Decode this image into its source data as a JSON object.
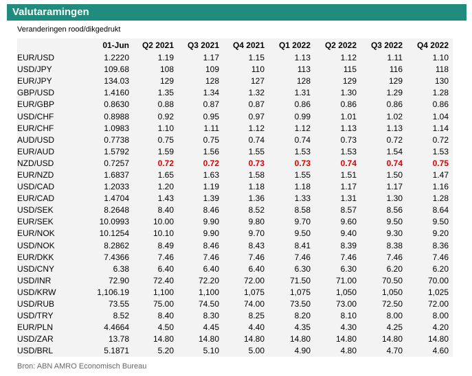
{
  "title": "Valutaramingen",
  "subtitle": "Veranderingen rood/dikgedrukt",
  "columns": [
    "",
    "01-Jun",
    "Q2 2021",
    "Q3 2021",
    "Q4 2021",
    "Q1 2022",
    "Q2 2022",
    "Q3 2022",
    "Q4 2022"
  ],
  "rows": [
    {
      "pair": "EUR/USD",
      "values": [
        "1.2220",
        "1.19",
        "1.17",
        "1.15",
        "1.13",
        "1.12",
        "1.11",
        "1.10"
      ],
      "highlight": false
    },
    {
      "pair": "USD/JPY",
      "values": [
        "109.68",
        "108",
        "109",
        "110",
        "113",
        "115",
        "116",
        "118"
      ],
      "highlight": false
    },
    {
      "pair": "EUR/JPY",
      "values": [
        "134.03",
        "129",
        "128",
        "127",
        "128",
        "129",
        "129",
        "130"
      ],
      "highlight": false
    },
    {
      "pair": "GBP/USD",
      "values": [
        "1.4160",
        "1.35",
        "1.34",
        "1.32",
        "1.31",
        "1.30",
        "1.29",
        "1.28"
      ],
      "highlight": false
    },
    {
      "pair": "EUR/GBP",
      "values": [
        "0.8630",
        "0.88",
        "0.87",
        "0.87",
        "0.86",
        "0.86",
        "0.86",
        "0.86"
      ],
      "highlight": false
    },
    {
      "pair": "USD/CHF",
      "values": [
        "0.8988",
        "0.92",
        "0.95",
        "0.97",
        "0.99",
        "1.01",
        "1.02",
        "1.04"
      ],
      "highlight": false
    },
    {
      "pair": "EUR/CHF",
      "values": [
        "1.0983",
        "1.10",
        "1.11",
        "1.12",
        "1.12",
        "1.13",
        "1.13",
        "1.14"
      ],
      "highlight": false
    },
    {
      "pair": "AUD/USD",
      "values": [
        "0.7738",
        "0.75",
        "0.75",
        "0.74",
        "0.74",
        "0.73",
        "0.72",
        "0.72"
      ],
      "highlight": false
    },
    {
      "pair": "EUR/AUD",
      "values": [
        "1.5792",
        "1.59",
        "1.56",
        "1.55",
        "1.53",
        "1.53",
        "1.54",
        "1.53"
      ],
      "highlight": false
    },
    {
      "pair": "NZD/USD",
      "values": [
        "0.7257",
        "0.72",
        "0.72",
        "0.73",
        "0.73",
        "0.74",
        "0.74",
        "0.75"
      ],
      "highlight": true
    },
    {
      "pair": "EUR/NZD",
      "values": [
        "1.6837",
        "1.65",
        "1.63",
        "1.58",
        "1.55",
        "1.51",
        "1.50",
        "1.47"
      ],
      "highlight": false
    },
    {
      "pair": "USD/CAD",
      "values": [
        "1.2033",
        "1.20",
        "1.19",
        "1.18",
        "1.18",
        "1.17",
        "1.17",
        "1.16"
      ],
      "highlight": false
    },
    {
      "pair": "EUR/CAD",
      "values": [
        "1.4704",
        "1.43",
        "1.39",
        "1.36",
        "1.33",
        "1.31",
        "1.30",
        "1.28"
      ],
      "highlight": false
    },
    {
      "pair": "USD/SEK",
      "values": [
        "8.2648",
        "8.40",
        "8.46",
        "8.52",
        "8.58",
        "8.57",
        "8.56",
        "8.64"
      ],
      "highlight": false
    },
    {
      "pair": "EUR/SEK",
      "values": [
        "10.0993",
        "10.00",
        "9.90",
        "9.80",
        "9.70",
        "9.60",
        "9.50",
        "9.50"
      ],
      "highlight": false
    },
    {
      "pair": "EUR/NOK",
      "values": [
        "10.1254",
        "10.10",
        "9.90",
        "9.70",
        "9.50",
        "9.40",
        "9.30",
        "9.20"
      ],
      "highlight": false
    },
    {
      "pair": "USD/NOK",
      "values": [
        "8.2862",
        "8.49",
        "8.46",
        "8.43",
        "8.41",
        "8.39",
        "8.38",
        "8.36"
      ],
      "highlight": false
    },
    {
      "pair": "EUR/DKK",
      "values": [
        "7.4366",
        "7.46",
        "7.46",
        "7.46",
        "7.46",
        "7.46",
        "7.46",
        "7.46"
      ],
      "highlight": false
    },
    {
      "pair": "USD/CNY",
      "values": [
        "6.38",
        "6.40",
        "6.40",
        "6.40",
        "6.30",
        "6.30",
        "6.20",
        "6.20"
      ],
      "highlight": false
    },
    {
      "pair": "USD/INR",
      "values": [
        "72.90",
        "72.40",
        "72.20",
        "72.00",
        "71.50",
        "71.00",
        "70.50",
        "70.00"
      ],
      "highlight": false
    },
    {
      "pair": "USD/KRW",
      "values": [
        "1,106.19",
        "1,100",
        "1,100",
        "1,075",
        "1,075",
        "1,050",
        "1,050",
        "1,025"
      ],
      "highlight": false
    },
    {
      "pair": "USD/RUB",
      "values": [
        "73.55",
        "75.00",
        "74.50",
        "74.00",
        "73.50",
        "73.00",
        "72.50",
        "72.00"
      ],
      "highlight": false
    },
    {
      "pair": "USD/TRY",
      "values": [
        "8.52",
        "8.40",
        "8.30",
        "8.25",
        "8.20",
        "8.10",
        "8.00",
        "8.00"
      ],
      "highlight": false
    },
    {
      "pair": "EUR/PLN",
      "values": [
        "4.4664",
        "4.50",
        "4.45",
        "4.40",
        "4.35",
        "4.30",
        "4.25",
        "4.20"
      ],
      "highlight": false
    },
    {
      "pair": "USD/ZAR",
      "values": [
        "13.78",
        "14.80",
        "14.80",
        "14.80",
        "14.80",
        "14.80",
        "14.80",
        "14.80"
      ],
      "highlight": false
    },
    {
      "pair": "USD/BRL",
      "values": [
        "5.1871",
        "5.20",
        "5.10",
        "5.00",
        "4.90",
        "4.80",
        "4.70",
        "4.60"
      ],
      "highlight": false
    }
  ],
  "source": "Bron: ABN AMRO Economisch Bureau",
  "colors": {
    "header_bg": "#1f8c7d",
    "highlight": "#e00000",
    "table_bg": "#f3f3f3"
  }
}
